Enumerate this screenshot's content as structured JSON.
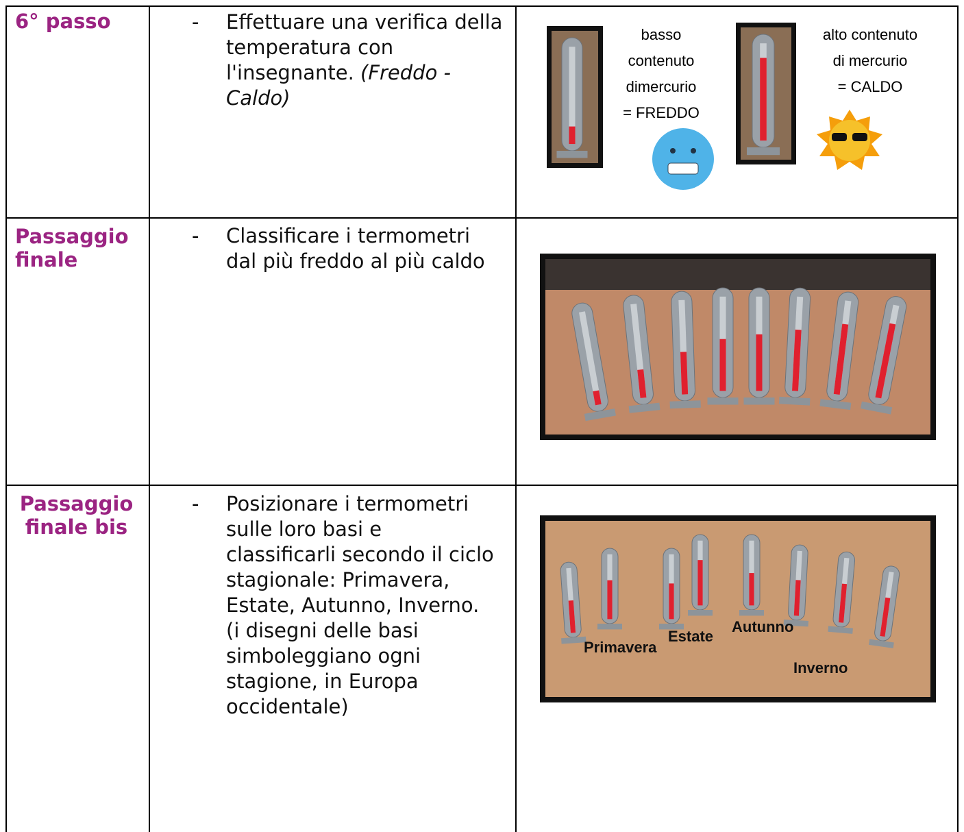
{
  "table": {
    "rows": [
      {
        "label": "6° passo",
        "bullet": "-",
        "text": "Effettuare una verifica della temperatura con l'insegnante.",
        "text_italic": "(Freddo - Caldo)",
        "captions": [
          {
            "lines": [
              "basso",
              "contenuto",
              "dimercurio",
              "= FREDDO"
            ]
          },
          {
            "lines": [
              "alto contenuto",
              "di mercurio",
              "= CALDO"
            ]
          }
        ]
      },
      {
        "label": "Passaggio finale",
        "bullet": "-",
        "text": "Classificare i termometri dal più freddo al più caldo"
      },
      {
        "label": "Passaggio finale bis",
        "bullet": "-",
        "text": "Posizionare i termometri sulle loro basi e classificarli secondo il ciclo stagionale: Primavera, Estate, Autunno, Inverno. (i disegni delle basi simboleggiano ogni stagione, in Europa occidentale)",
        "image_labels": [
          "Primavera",
          "Estate",
          "Autunno",
          "Inverno"
        ]
      }
    ]
  }
}
